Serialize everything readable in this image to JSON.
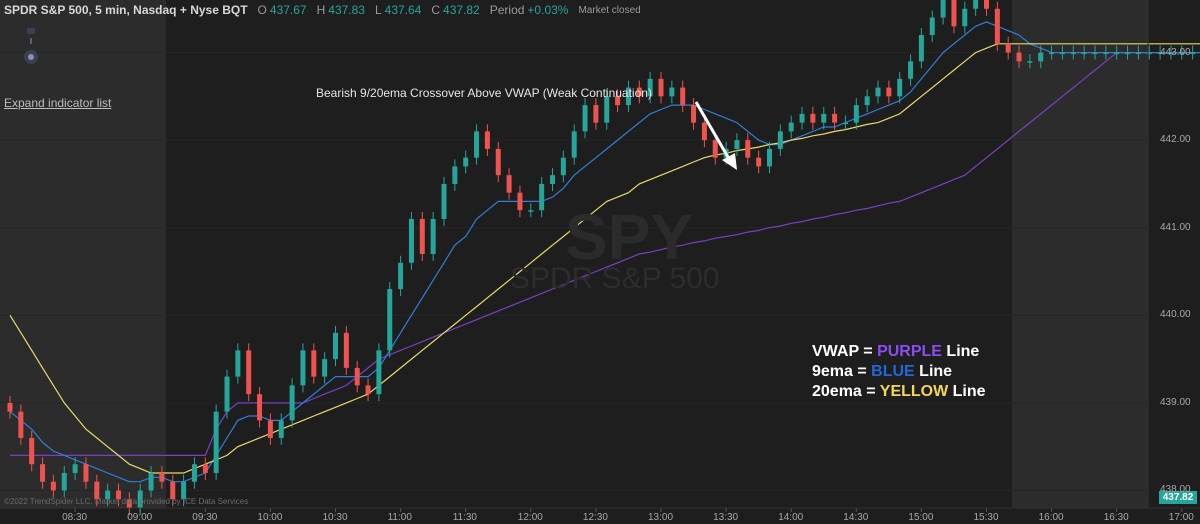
{
  "header": {
    "title": "SPDR S&P 500, 5 min, Nasdaq + Nyse BQT",
    "open_label": "O",
    "open": "437.67",
    "high_label": "H",
    "high": "437.83",
    "low_label": "L",
    "low": "437.64",
    "close_label": "C",
    "close": "437.82",
    "period_label": "Period",
    "period": "+0.03%",
    "status": "Market closed"
  },
  "expand_link": "Expand indicator list",
  "annotation": "Bearish 9/20ema Crossover Above VWAP (Weak Continuation)",
  "legend": {
    "vwap_prefix": "VWAP = ",
    "vwap_color_word": "PURPLE",
    "vwap_suffix": " Line",
    "ema9_prefix": "9ema = ",
    "ema9_color_word": "BLUE",
    "ema9_suffix": " Line",
    "ema20_prefix": "20ema = ",
    "ema20_color_word": "YELLOW",
    "ema20_suffix": " Line"
  },
  "watermark": {
    "symbol": "SPY",
    "name": "SPDR S&P 500"
  },
  "copyright": "©2022 TrendSpider LLC. Market data provided by ICE Data Services",
  "price_tag": "437.82",
  "colors": {
    "background": "#1e1e1e",
    "session_shade": "#2c2c2c",
    "up": "#26a69a",
    "down": "#ef5350",
    "vwap": "#7a3fc4",
    "ema9": "#2f7ed8",
    "ema20": "#e8d96a"
  },
  "chart_data": {
    "type": "candlestick",
    "ylim": [
      437.8,
      443.6
    ],
    "y_ticks": [
      "443.00",
      "442.00",
      "441.00",
      "440.00",
      "439.00",
      "438.00"
    ],
    "y_tick_values": [
      443.0,
      442.0,
      441.0,
      440.0,
      439.0,
      438.0
    ],
    "x_ticks": [
      "08:30",
      "09:00",
      "09:30",
      "10:00",
      "10:30",
      "11:00",
      "11:30",
      "12:00",
      "12:30",
      "13:00",
      "13:30",
      "14:00",
      "14:30",
      "15:00",
      "15:30",
      "16:00",
      "16:30",
      "17:00"
    ],
    "x_tick_index": [
      6,
      12,
      18,
      24,
      30,
      36,
      42,
      48,
      54,
      60,
      66,
      72,
      78,
      84,
      90,
      96,
      102,
      108
    ],
    "regular_session": [
      "09:30",
      "16:00"
    ],
    "candles_close": [
      438.9,
      438.6,
      438.3,
      438.1,
      438.0,
      438.2,
      438.3,
      438.1,
      437.9,
      438.0,
      437.9,
      437.8,
      438.0,
      438.2,
      438.1,
      437.9,
      438.1,
      438.3,
      438.2,
      438.9,
      439.3,
      439.6,
      439.1,
      438.8,
      438.6,
      438.8,
      439.2,
      439.6,
      439.3,
      439.5,
      439.8,
      439.4,
      439.2,
      439.1,
      439.6,
      440.3,
      440.6,
      441.1,
      440.7,
      441.1,
      441.5,
      441.7,
      441.8,
      442.1,
      441.9,
      441.6,
      441.4,
      441.2,
      441.2,
      441.5,
      441.6,
      441.8,
      442.1,
      442.4,
      442.2,
      442.5,
      442.4,
      442.6,
      442.5,
      442.7,
      442.5,
      442.6,
      442.4,
      442.2,
      442.0,
      441.8,
      441.9,
      442.0,
      441.8,
      441.7,
      441.9,
      442.1,
      442.2,
      442.3,
      442.2,
      442.3,
      442.2,
      442.2,
      442.4,
      442.5,
      442.6,
      442.5,
      442.7,
      442.9,
      443.2,
      443.4,
      443.6,
      443.3,
      443.5,
      443.7,
      443.5,
      443.1,
      443.0,
      442.9,
      442.9,
      443.0,
      443.0,
      443.0,
      443.0,
      443.0,
      443.0,
      443.0,
      443.0,
      443.0,
      443.0,
      443.0,
      443.0,
      443.0,
      443.0,
      443.0,
      443.0,
      443.0,
      443.0,
      443.0,
      443.0,
      443.0
    ],
    "series": [
      {
        "name": "VWAP",
        "values": [
          438.4,
          438.4,
          438.4,
          438.4,
          438.4,
          438.4,
          438.4,
          438.4,
          438.4,
          438.4,
          438.4,
          438.4,
          438.4,
          438.4,
          438.4,
          438.4,
          438.4,
          438.4,
          438.4,
          438.7,
          438.9,
          439.0,
          439.0,
          439.0,
          439.0,
          439.0,
          439.0,
          439.0,
          439.05,
          439.1,
          439.15,
          439.2,
          439.3,
          439.4,
          439.5,
          439.55,
          439.6,
          439.65,
          439.7,
          439.75,
          439.8,
          439.85,
          439.9,
          439.95,
          440.0,
          440.05,
          440.1,
          440.15,
          440.2,
          440.25,
          440.3,
          440.35,
          440.4,
          440.45,
          440.5,
          440.55,
          440.6,
          440.65,
          440.7,
          440.72,
          440.75,
          440.78,
          440.8,
          440.83,
          440.85,
          440.88,
          440.9,
          440.92,
          440.95,
          440.97,
          441.0,
          441.02,
          441.05,
          441.07,
          441.1,
          441.12,
          441.15,
          441.17,
          441.2,
          441.22,
          441.25,
          441.28,
          441.3,
          441.35,
          441.4,
          441.45,
          441.5,
          441.55,
          441.6,
          441.7,
          441.8,
          441.9,
          442.0,
          442.1,
          442.2,
          442.3,
          442.4,
          442.5,
          442.6,
          442.7,
          442.8,
          442.9,
          443.0,
          443.0,
          443.0,
          443.0,
          443.0,
          443.0,
          443.0,
          443.0,
          443.0,
          443.0,
          443.0,
          443.0,
          443.0,
          443.0
        ]
      },
      {
        "name": "9ema",
        "values": [
          438.9,
          438.8,
          438.7,
          438.55,
          438.45,
          438.4,
          438.35,
          438.3,
          438.25,
          438.2,
          438.15,
          438.1,
          438.1,
          438.15,
          438.15,
          438.1,
          438.1,
          438.15,
          438.2,
          438.4,
          438.6,
          438.8,
          438.85,
          438.85,
          438.8,
          438.8,
          438.9,
          439.0,
          439.1,
          439.2,
          439.3,
          439.3,
          439.3,
          439.3,
          439.4,
          439.6,
          439.8,
          440.0,
          440.2,
          440.4,
          440.6,
          440.8,
          440.9,
          441.1,
          441.2,
          441.3,
          441.3,
          441.3,
          441.3,
          441.3,
          441.35,
          441.45,
          441.6,
          441.7,
          441.8,
          441.9,
          442.0,
          442.1,
          442.2,
          442.3,
          442.35,
          442.4,
          442.4,
          442.4,
          442.35,
          442.3,
          442.25,
          442.2,
          442.1,
          442.0,
          441.95,
          441.95,
          442.0,
          442.05,
          442.1,
          442.15,
          442.15,
          442.2,
          442.25,
          442.3,
          442.35,
          442.4,
          442.45,
          442.55,
          442.7,
          442.85,
          443.0,
          443.1,
          443.2,
          443.3,
          443.35,
          443.3,
          443.25,
          443.2,
          443.1,
          443.05,
          443.0,
          443.0,
          443.0,
          443.0,
          443.0,
          443.0,
          443.0,
          443.0,
          443.0,
          443.0,
          443.0,
          443.0,
          443.0,
          443.0,
          443.0,
          443.0,
          443.0,
          443.0,
          443.0,
          443.0
        ]
      },
      {
        "name": "20ema",
        "values": [
          440.0,
          439.8,
          439.6,
          439.4,
          439.2,
          439.0,
          438.85,
          438.7,
          438.6,
          438.5,
          438.4,
          438.3,
          438.25,
          438.2,
          438.2,
          438.2,
          438.2,
          438.25,
          438.3,
          438.35,
          438.4,
          438.5,
          438.55,
          438.6,
          438.65,
          438.7,
          438.75,
          438.8,
          438.85,
          438.9,
          438.95,
          439.0,
          439.05,
          439.1,
          439.2,
          439.3,
          439.4,
          439.5,
          439.6,
          439.7,
          439.8,
          439.9,
          440.0,
          440.1,
          440.2,
          440.3,
          440.4,
          440.5,
          440.6,
          440.7,
          440.8,
          440.9,
          441.0,
          441.1,
          441.2,
          441.3,
          441.35,
          441.4,
          441.5,
          441.55,
          441.6,
          441.65,
          441.7,
          441.75,
          441.8,
          441.83,
          441.85,
          441.88,
          441.9,
          441.92,
          441.95,
          441.97,
          442.0,
          442.02,
          442.05,
          442.07,
          442.1,
          442.12,
          442.15,
          442.18,
          442.2,
          442.25,
          442.3,
          442.4,
          442.5,
          442.6,
          442.7,
          442.8,
          442.9,
          443.0,
          443.05,
          443.1,
          443.1,
          443.1,
          443.1,
          443.1,
          443.1,
          443.1,
          443.1,
          443.1,
          443.1,
          443.1,
          443.1,
          443.1,
          443.1,
          443.1,
          443.1,
          443.1,
          443.1,
          443.1,
          443.1,
          443.1,
          443.1,
          443.1,
          443.1,
          443.1
        ]
      }
    ]
  }
}
